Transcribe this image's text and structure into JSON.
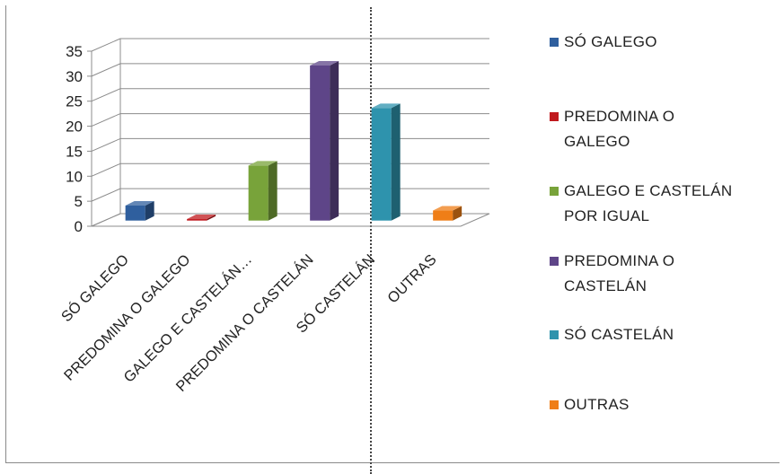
{
  "chart_data": {
    "type": "bar",
    "title": "",
    "xlabel": "",
    "ylabel": "",
    "categories": [
      "SÓ GALEGO",
      "PREDOMINA O GALEGO",
      "GALEGO E CASTELÁN…",
      "PREDOMINA O CASTELÁN",
      "SÓ CASTELÁN",
      "OUTRAS"
    ],
    "values": [
      3,
      0.3,
      11,
      31,
      22.5,
      2
    ],
    "ylim": [
      0,
      35
    ],
    "yticks": [
      "0",
      "5",
      "10",
      "15",
      "20",
      "25",
      "30",
      "35"
    ],
    "grid": true,
    "legend_position": "right",
    "legend": [
      {
        "lines": [
          "SÓ GALEGO"
        ],
        "color": "#2f5f9e"
      },
      {
        "lines": [
          "PREDOMINA O",
          "GALEGO"
        ],
        "color": "#c0191e"
      },
      {
        "lines": [
          "GALEGO E CASTELÁN",
          "POR IGUAL"
        ],
        "color": "#78a33a"
      },
      {
        "lines": [
          "PREDOMINA O",
          "CASTELÁN"
        ],
        "color": "#5e4588"
      },
      {
        "lines": [
          "SÓ CASTELÁN"
        ],
        "color": "#2e93ad"
      },
      {
        "lines": [
          "OUTRAS"
        ],
        "color": "#ef7e17"
      }
    ],
    "colors": [
      "#2f5f9e",
      "#c0191e",
      "#78a33a",
      "#5e4588",
      "#2e93ad",
      "#ef7e17"
    ]
  }
}
